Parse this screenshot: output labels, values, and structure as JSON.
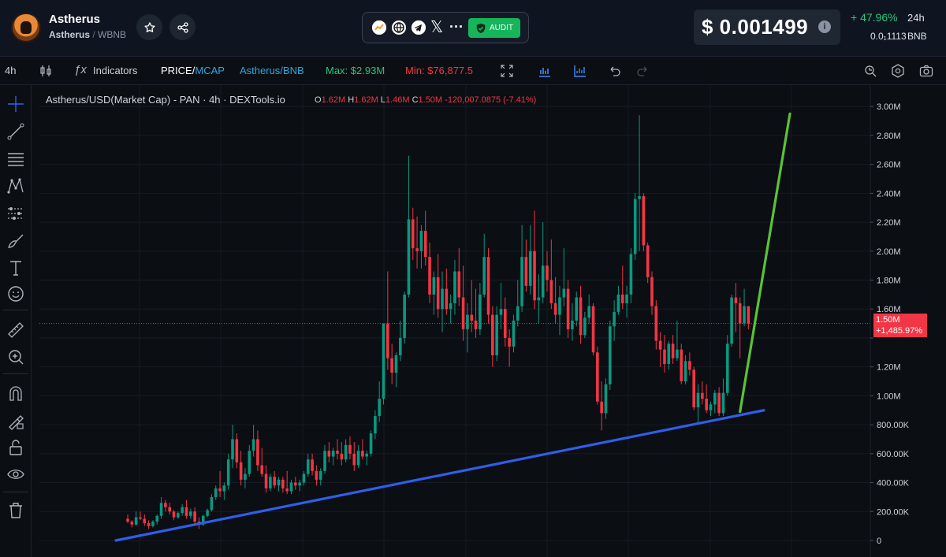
{
  "header": {
    "token_name": "Astherus",
    "base": "Astherus",
    "separator": "/",
    "quote": "WBNB",
    "audit_label": "AUDIT",
    "price": "$ 0.001499",
    "change_pct": "+ 47.96%",
    "change_period": "24h",
    "bnb_price": "0.0₁1113",
    "bnb_unit": "BNB"
  },
  "toolbar": {
    "interval": "4h",
    "indicators": "Indicators",
    "price_label": "PRICE",
    "price_sep": "/",
    "mcap_label": "MCAP",
    "pair_toggle": "Astherus/BNB",
    "max": "Max: $2.93M",
    "min": "Min: $76,877.5"
  },
  "legend": {
    "title": "Astherus/USD(Market Cap) - PAN · 4h · DEXTools.io",
    "o_key": "O",
    "o_val": "1.62M",
    "h_key": "H",
    "h_val": "1.62M",
    "l_key": "L",
    "l_val": "1.46M",
    "c_key": "C",
    "c_val": "1.50M",
    "change": "-120,007.0875 (-7.41%)"
  },
  "price_tag": {
    "value": "1.50M",
    "change": "+1,485.97%"
  },
  "colors": {
    "up": "#089981",
    "down": "#f23645",
    "blue_line": "#2f5ee8",
    "green_line": "#5bc236",
    "background": "#0b0e13"
  },
  "chart_data": {
    "type": "candlestick",
    "title": "Astherus/USD(Market Cap) - PAN · 4h · DEXTools.io",
    "y_unit": "USD market cap",
    "ylim": [
      0,
      3050000
    ],
    "y_ticks": [
      0,
      200000,
      400000,
      600000,
      800000,
      1000000,
      1200000,
      1400000,
      1600000,
      1800000,
      2000000,
      2200000,
      2400000,
      2600000,
      2800000,
      3000000
    ],
    "y_tick_labels": [
      "0",
      "200.00K",
      "400.00K",
      "600.00K",
      "800.00K",
      "1.00M",
      "1.20M",
      "",
      "1.60M",
      "1.80M",
      "2.00M",
      "2.20M",
      "2.40M",
      "2.60M",
      "2.80M",
      "3.00M"
    ],
    "last_price": 1500000,
    "max": 2930000,
    "min": 76877.5,
    "trend_lines": [
      {
        "color": "blue",
        "from": [
          0,
          0
        ],
        "to": [
          152,
          900000
        ]
      },
      {
        "color": "green",
        "from": [
          146,
          890000
        ],
        "to": [
          155,
          2950000
        ]
      }
    ],
    "candles": [
      [
        150000,
        180000,
        120000,
        130000
      ],
      [
        130000,
        140000,
        90000,
        110000
      ],
      [
        110000,
        200000,
        100000,
        160000
      ],
      [
        160000,
        200000,
        140000,
        150000
      ],
      [
        150000,
        180000,
        100000,
        120000
      ],
      [
        120000,
        140000,
        80000,
        100000
      ],
      [
        100000,
        140000,
        90000,
        130000
      ],
      [
        130000,
        180000,
        110000,
        170000
      ],
      [
        170000,
        300000,
        150000,
        260000
      ],
      [
        260000,
        280000,
        200000,
        230000
      ],
      [
        230000,
        260000,
        180000,
        200000
      ],
      [
        200000,
        210000,
        140000,
        160000
      ],
      [
        160000,
        200000,
        150000,
        190000
      ],
      [
        190000,
        250000,
        170000,
        230000
      ],
      [
        230000,
        280000,
        150000,
        170000
      ],
      [
        170000,
        220000,
        150000,
        200000
      ],
      [
        200000,
        230000,
        100000,
        130000
      ],
      [
        130000,
        160000,
        80000,
        110000
      ],
      [
        110000,
        180000,
        100000,
        170000
      ],
      [
        170000,
        220000,
        160000,
        210000
      ],
      [
        210000,
        320000,
        200000,
        300000
      ],
      [
        300000,
        380000,
        280000,
        360000
      ],
      [
        360000,
        480000,
        300000,
        340000
      ],
      [
        340000,
        400000,
        280000,
        380000
      ],
      [
        380000,
        600000,
        350000,
        560000
      ],
      [
        560000,
        800000,
        500000,
        700000
      ],
      [
        700000,
        740000,
        500000,
        540000
      ],
      [
        540000,
        620000,
        380000,
        420000
      ],
      [
        420000,
        500000,
        360000,
        460000
      ],
      [
        460000,
        660000,
        440000,
        620000
      ],
      [
        620000,
        800000,
        580000,
        700000
      ],
      [
        700000,
        760000,
        480000,
        520000
      ],
      [
        520000,
        640000,
        440000,
        460000
      ],
      [
        460000,
        520000,
        330000,
        360000
      ],
      [
        360000,
        460000,
        340000,
        440000
      ],
      [
        440000,
        480000,
        360000,
        380000
      ],
      [
        380000,
        440000,
        340000,
        420000
      ],
      [
        420000,
        440000,
        330000,
        360000
      ],
      [
        360000,
        480000,
        320000,
        340000
      ],
      [
        340000,
        420000,
        320000,
        400000
      ],
      [
        400000,
        440000,
        350000,
        380000
      ],
      [
        380000,
        420000,
        340000,
        400000
      ],
      [
        400000,
        480000,
        380000,
        460000
      ],
      [
        460000,
        600000,
        440000,
        560000
      ],
      [
        560000,
        600000,
        450000,
        480000
      ],
      [
        480000,
        520000,
        380000,
        420000
      ],
      [
        420000,
        500000,
        380000,
        480000
      ],
      [
        480000,
        660000,
        460000,
        620000
      ],
      [
        620000,
        680000,
        540000,
        580000
      ],
      [
        580000,
        640000,
        520000,
        620000
      ],
      [
        620000,
        700000,
        560000,
        600000
      ],
      [
        600000,
        680000,
        520000,
        560000
      ],
      [
        560000,
        700000,
        540000,
        660000
      ],
      [
        660000,
        720000,
        560000,
        600000
      ],
      [
        600000,
        680000,
        480000,
        520000
      ],
      [
        520000,
        660000,
        500000,
        620000
      ],
      [
        620000,
        700000,
        560000,
        580000
      ],
      [
        580000,
        620000,
        520000,
        600000
      ],
      [
        600000,
        760000,
        580000,
        740000
      ],
      [
        740000,
        900000,
        700000,
        860000
      ],
      [
        860000,
        1100000,
        820000,
        980000
      ],
      [
        980000,
        1500000,
        940000,
        1500000
      ],
      [
        1500000,
        1860000,
        1180000,
        1260000
      ],
      [
        1260000,
        1360000,
        1080000,
        1160000
      ],
      [
        1160000,
        1300000,
        1060000,
        1280000
      ],
      [
        1280000,
        1520000,
        1240000,
        1400000
      ],
      [
        1400000,
        1720000,
        1360000,
        1700000
      ],
      [
        1700000,
        2660000,
        1680000,
        2220000
      ],
      [
        2220000,
        2300000,
        1940000,
        2020000
      ],
      [
        2020000,
        2240000,
        1880000,
        2000000
      ],
      [
        2000000,
        2180000,
        1880000,
        2140000
      ],
      [
        2140000,
        2280000,
        1900000,
        1960000
      ],
      [
        1960000,
        2060000,
        1640000,
        1700000
      ],
      [
        1700000,
        1860000,
        1560000,
        1820000
      ],
      [
        1820000,
        1980000,
        1540000,
        1600000
      ],
      [
        1600000,
        1860000,
        1440000,
        1740000
      ],
      [
        1740000,
        1880000,
        1560000,
        1600000
      ],
      [
        1600000,
        1700000,
        1500000,
        1640000
      ],
      [
        1640000,
        1940000,
        1560000,
        1860000
      ],
      [
        1860000,
        2020000,
        1620000,
        1680000
      ],
      [
        1680000,
        1900000,
        1380000,
        1460000
      ],
      [
        1460000,
        1640000,
        1300000,
        1560000
      ],
      [
        1560000,
        1800000,
        1440000,
        1520000
      ],
      [
        1520000,
        1740000,
        1400000,
        1460000
      ],
      [
        1460000,
        1780000,
        1420000,
        1700000
      ],
      [
        1700000,
        2120000,
        1680000,
        1960000
      ],
      [
        1960000,
        2020000,
        1500000,
        1560000
      ],
      [
        1560000,
        1620000,
        1200000,
        1280000
      ],
      [
        1280000,
        1620000,
        1240000,
        1560000
      ],
      [
        1560000,
        1780000,
        1460000,
        1600000
      ],
      [
        1600000,
        1680000,
        1340000,
        1400000
      ],
      [
        1400000,
        1460000,
        1200000,
        1340000
      ],
      [
        1340000,
        1560000,
        1300000,
        1520000
      ],
      [
        1520000,
        1800000,
        1480000,
        1620000
      ],
      [
        1620000,
        2180000,
        1580000,
        1960000
      ],
      [
        1960000,
        2080000,
        1720000,
        1760000
      ],
      [
        1760000,
        2180000,
        1700000,
        2000000
      ],
      [
        2000000,
        2280000,
        1600000,
        1660000
      ],
      [
        1660000,
        1840000,
        1500000,
        1680000
      ],
      [
        1680000,
        2200000,
        1640000,
        1900000
      ],
      [
        1900000,
        2000000,
        1720000,
        1800000
      ],
      [
        1800000,
        2080000,
        1600000,
        1640000
      ],
      [
        1640000,
        1820000,
        1500000,
        1560000
      ],
      [
        1560000,
        1760000,
        1420000,
        1680000
      ],
      [
        1680000,
        2020000,
        1620000,
        1740000
      ],
      [
        1740000,
        1800000,
        1400000,
        1460000
      ],
      [
        1460000,
        1640000,
        1380000,
        1520000
      ],
      [
        1520000,
        1720000,
        1480000,
        1680000
      ],
      [
        1680000,
        1760000,
        1360000,
        1420000
      ],
      [
        1420000,
        1580000,
        1400000,
        1540000
      ],
      [
        1540000,
        1700000,
        1500000,
        1620000
      ],
      [
        1620000,
        1640000,
        1280000,
        1300000
      ],
      [
        1300000,
        1340000,
        940000,
        960000
      ],
      [
        960000,
        1100000,
        760000,
        880000
      ],
      [
        880000,
        1120000,
        840000,
        1080000
      ],
      [
        1080000,
        1520000,
        1040000,
        1480000
      ],
      [
        1480000,
        1660000,
        1380000,
        1580000
      ],
      [
        1580000,
        1760000,
        1560000,
        1700000
      ],
      [
        1700000,
        1900000,
        1600000,
        1640000
      ],
      [
        1640000,
        1760000,
        1540000,
        1700000
      ],
      [
        1700000,
        2020000,
        1640000,
        1980000
      ],
      [
        1980000,
        2400000,
        1940000,
        2360000
      ],
      [
        2360000,
        2940000,
        2000000,
        2380000
      ],
      [
        2380000,
        2400000,
        2000000,
        2040000
      ],
      [
        2040000,
        2060000,
        1780000,
        1820000
      ],
      [
        1820000,
        1860000,
        1560000,
        1620000
      ],
      [
        1620000,
        1660000,
        1320000,
        1380000
      ],
      [
        1380000,
        1440000,
        1200000,
        1320000
      ],
      [
        1320000,
        1420000,
        1160000,
        1220000
      ],
      [
        1220000,
        1380000,
        1180000,
        1360000
      ],
      [
        1360000,
        1420000,
        1220000,
        1260000
      ],
      [
        1260000,
        1520000,
        1240000,
        1320000
      ],
      [
        1320000,
        1360000,
        1080000,
        1100000
      ],
      [
        1100000,
        1280000,
        1080000,
        1240000
      ],
      [
        1240000,
        1300000,
        1140000,
        1180000
      ],
      [
        1180000,
        1200000,
        900000,
        920000
      ],
      [
        920000,
        1080000,
        800000,
        1020000
      ],
      [
        1020000,
        1100000,
        940000,
        980000
      ],
      [
        980000,
        1080000,
        880000,
        900000
      ],
      [
        900000,
        960000,
        860000,
        940000
      ],
      [
        940000,
        1040000,
        880000,
        1020000
      ],
      [
        1020000,
        1060000,
        860000,
        880000
      ],
      [
        880000,
        1120000,
        860000,
        1020000
      ],
      [
        1020000,
        1420000,
        1000000,
        1360000
      ],
      [
        1360000,
        1700000,
        1340000,
        1680000
      ],
      [
        1680000,
        1780000,
        1440000,
        1640000
      ],
      [
        1640000,
        1680000,
        1260000,
        1500000
      ],
      [
        1500000,
        1740000,
        1480000,
        1620000
      ],
      [
        1620000,
        1620000,
        1460000,
        1500000
      ]
    ]
  }
}
